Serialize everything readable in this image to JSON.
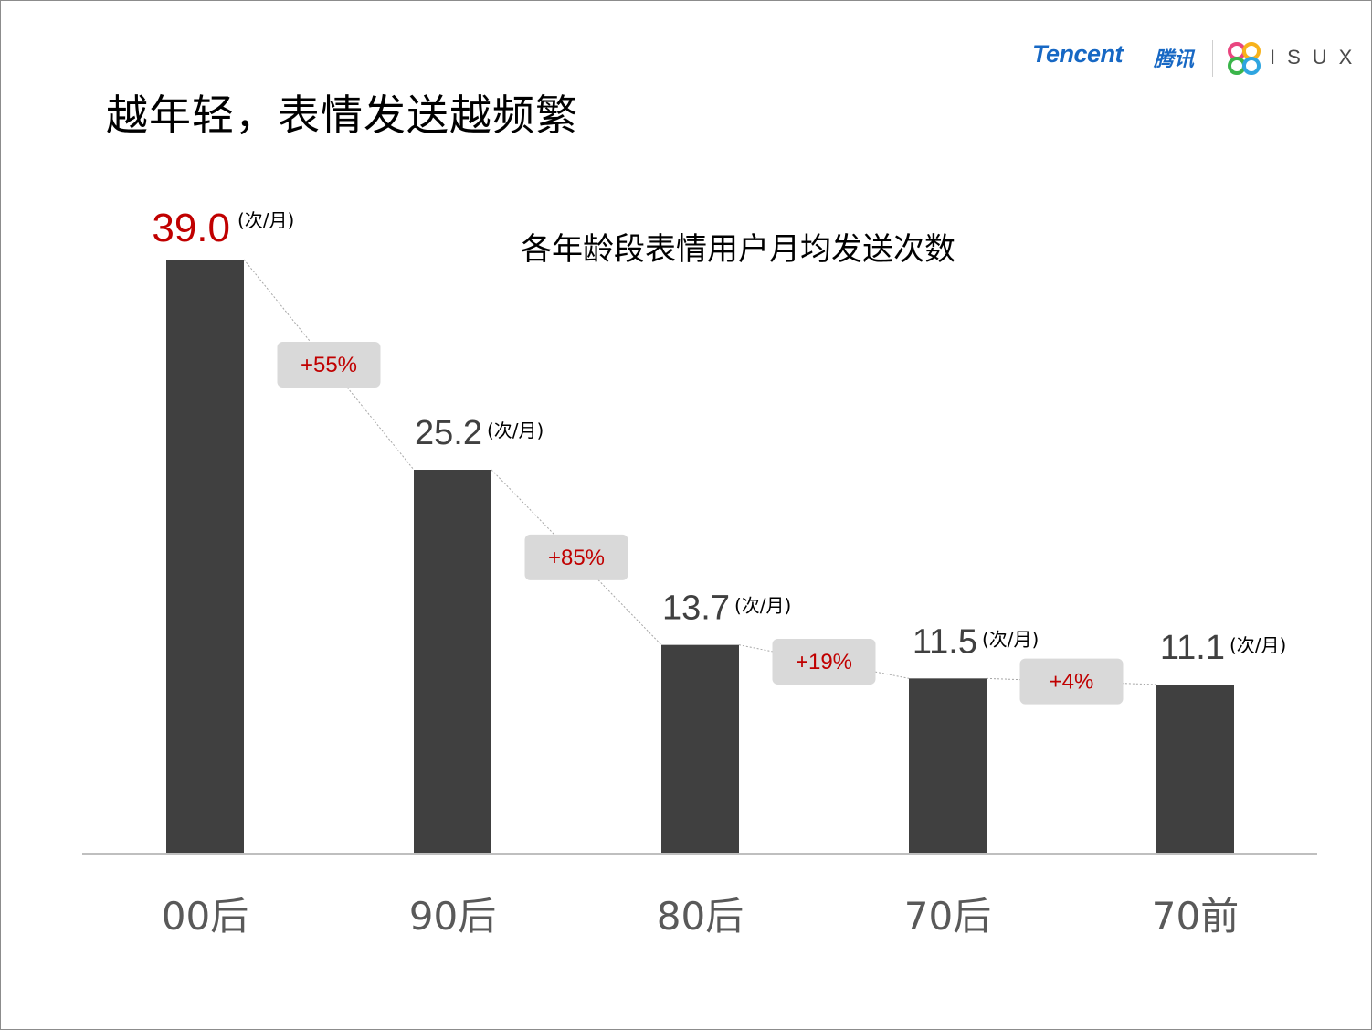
{
  "slide_title": "越年轻，表情发送越频繁",
  "brand": {
    "tencent": "Tencent",
    "tencent_cn": "腾讯",
    "isux": "ISUX"
  },
  "colors": {
    "bar": "#404040",
    "highlight": "#c00000",
    "value_text": "#404040",
    "badge_bg": "#d9d9d9",
    "badge_text": "#c00000",
    "axis": "#bfbfbf",
    "connector": "#a6a6a6",
    "brand_blue": "#1768c4"
  },
  "chart_data": {
    "type": "bar",
    "title": "各年龄段表情用户月均发送次数",
    "categories": [
      "00后",
      "90后",
      "80后",
      "70后",
      "70前"
    ],
    "values": [
      39.0,
      25.2,
      13.7,
      11.5,
      11.1
    ],
    "value_labels": [
      "39.0",
      "25.2",
      "13.7",
      "11.5",
      "11.1"
    ],
    "unit": "(次/月)",
    "growth_labels": [
      "+55%",
      "+85%",
      "+19%",
      "+4%"
    ],
    "highlight_index": 0,
    "ylim": [
      0,
      39.0
    ],
    "xlabel": "",
    "ylabel": "",
    "grid": false
  }
}
